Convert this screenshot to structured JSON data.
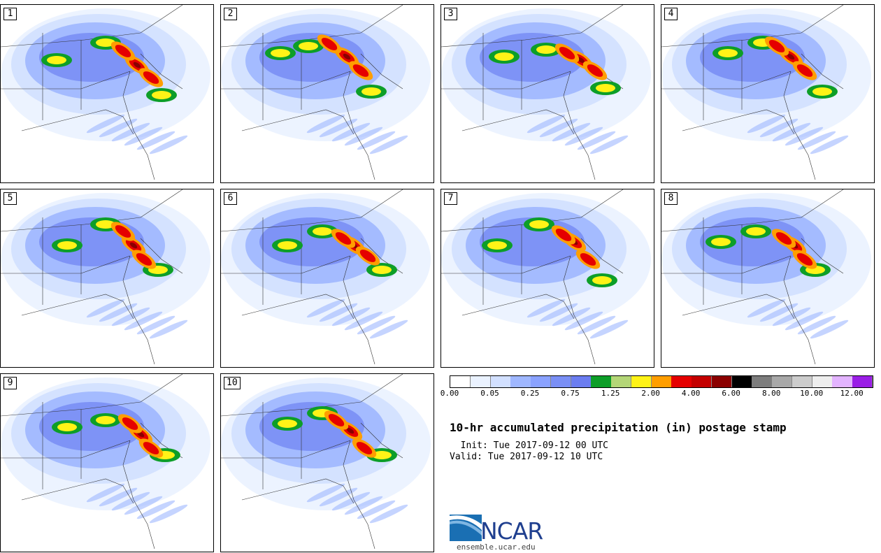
{
  "panels": [
    {
      "label": "1",
      "heavy": [
        [
          195,
          92
        ],
        [
          175,
          72
        ],
        [
          215,
          110
        ]
      ],
      "moderate": [
        [
          80,
          85
        ],
        [
          150,
          60
        ],
        [
          230,
          135
        ]
      ]
    },
    {
      "label": "2",
      "heavy": [
        [
          495,
          80
        ],
        [
          515,
          100
        ],
        [
          470,
          62
        ]
      ],
      "moderate": [
        [
          400,
          75
        ],
        [
          440,
          65
        ],
        [
          530,
          130
        ]
      ]
    },
    {
      "label": "3",
      "heavy": [
        [
          830,
          85
        ],
        [
          810,
          75
        ],
        [
          850,
          100
        ]
      ],
      "moderate": [
        [
          720,
          80
        ],
        [
          780,
          70
        ],
        [
          865,
          125
        ]
      ]
    },
    {
      "label": "4",
      "heavy": [
        [
          1130,
          80
        ],
        [
          1150,
          100
        ],
        [
          1110,
          65
        ]
      ],
      "moderate": [
        [
          1040,
          75
        ],
        [
          1090,
          60
        ],
        [
          1175,
          130
        ]
      ]
    },
    {
      "label": "5",
      "heavy": [
        [
          190,
          350
        ],
        [
          175,
          330
        ],
        [
          205,
          370
        ]
      ],
      "moderate": [
        [
          95,
          350
        ],
        [
          150,
          320
        ],
        [
          225,
          385
        ]
      ]
    },
    {
      "label": "6",
      "heavy": [
        [
          505,
          350
        ],
        [
          490,
          340
        ],
        [
          525,
          365
        ]
      ],
      "moderate": [
        [
          410,
          350
        ],
        [
          460,
          330
        ],
        [
          545,
          385
        ]
      ]
    },
    {
      "label": "7",
      "heavy": [
        [
          820,
          345
        ],
        [
          805,
          335
        ],
        [
          840,
          370
        ]
      ],
      "moderate": [
        [
          710,
          350
        ],
        [
          770,
          320
        ],
        [
          860,
          400
        ]
      ]
    },
    {
      "label": "8",
      "heavy": [
        [
          1135,
          350
        ],
        [
          1120,
          340
        ],
        [
          1150,
          370
        ]
      ],
      "moderate": [
        [
          1030,
          345
        ],
        [
          1080,
          330
        ],
        [
          1165,
          385
        ]
      ]
    },
    {
      "label": "9",
      "heavy": [
        [
          200,
          620
        ],
        [
          185,
          605
        ],
        [
          215,
          640
        ]
      ],
      "moderate": [
        [
          95,
          610
        ],
        [
          150,
          600
        ],
        [
          235,
          650
        ]
      ]
    },
    {
      "label": "10",
      "heavy": [
        [
          500,
          615
        ],
        [
          480,
          600
        ],
        [
          520,
          640
        ]
      ],
      "moderate": [
        [
          410,
          605
        ],
        [
          460,
          590
        ],
        [
          545,
          650
        ]
      ]
    }
  ],
  "legend": {
    "colors": [
      "#ffffff",
      "#eaf2ff",
      "#d2e0ff",
      "#9fb7ff",
      "#8aa2ff",
      "#7a8ff5",
      "#6b7df0",
      "#0d9e28",
      "#b4d677",
      "#fff317",
      "#ff9e00",
      "#e50000",
      "#c40000",
      "#8b0000",
      "#000000",
      "#7d7d7d",
      "#a8a8a8",
      "#cccccc",
      "#eeeeee",
      "#e3b4ff",
      "#9a1ee6"
    ],
    "labels": [
      "0.00",
      "0.05",
      "0.25",
      "0.75",
      "1.25",
      "2.00",
      "4.00",
      "6.00",
      "8.00",
      "10.00",
      "12.00"
    ]
  },
  "title": "10-hr accumulated precipitation (in) postage stamp",
  "init_text": "  Init: Tue 2017-09-12 00 UTC",
  "valid_text": "Valid: Tue 2017-09-12 10 UTC",
  "logo": {
    "text": "NCAR",
    "url": "ensemble.ucar.edu",
    "color": "#1f6fb5"
  }
}
